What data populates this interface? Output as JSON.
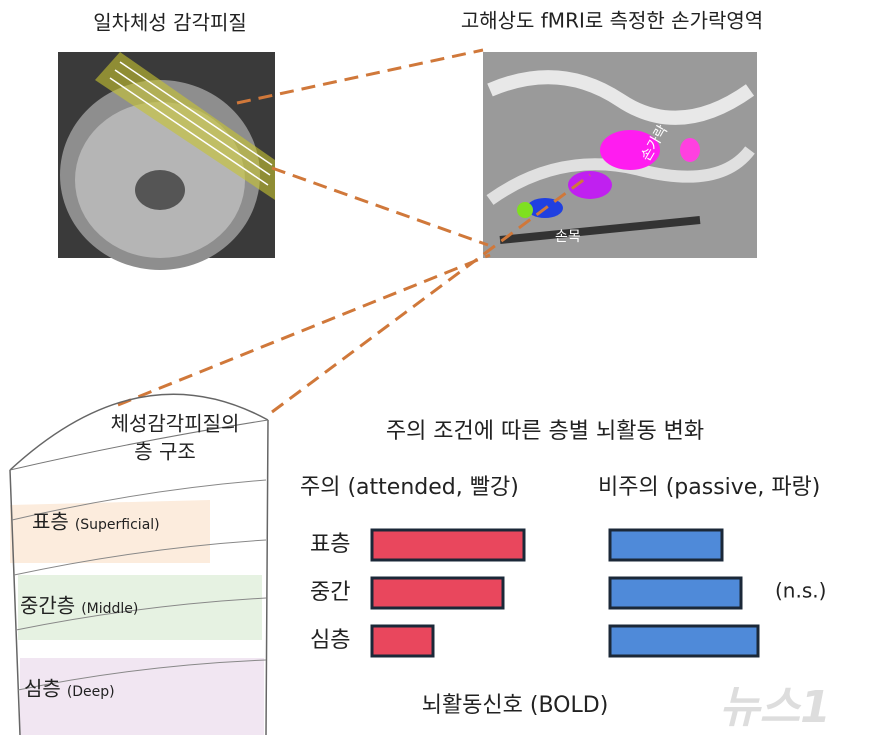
{
  "left_image": {
    "title": "일차체성 감각피질"
  },
  "right_image": {
    "title": "고해상도 fMRI로 측정한  손가락영역",
    "labels": [
      "손목",
      "손가락"
    ]
  },
  "layers_diagram": {
    "title_line1": "체성감각피질의",
    "title_line2": "층 구조",
    "layers": [
      {
        "name": "표층",
        "english": "(Superficial)"
      },
      {
        "name": "중간층",
        "english": "(Middle)"
      },
      {
        "name": "심층",
        "english": "(Deep)"
      }
    ]
  },
  "bars": {
    "title": "주의 조건에 따른 층별 뇌활동 변화",
    "rows": [
      "표층",
      "중간",
      "심층"
    ],
    "series": [
      {
        "name": "주의 (attended, 빨강)",
        "color": "#e9475d",
        "values": [
          152,
          131,
          61
        ]
      },
      {
        "name": "비주의 (passive, 파랑)",
        "color": "#4f8ad9",
        "values": [
          112,
          131,
          148
        ]
      }
    ],
    "annotation": "(n.s.)",
    "axis_label": "뇌활동신호 (BOLD)"
  },
  "watermark": "뉴스1"
}
